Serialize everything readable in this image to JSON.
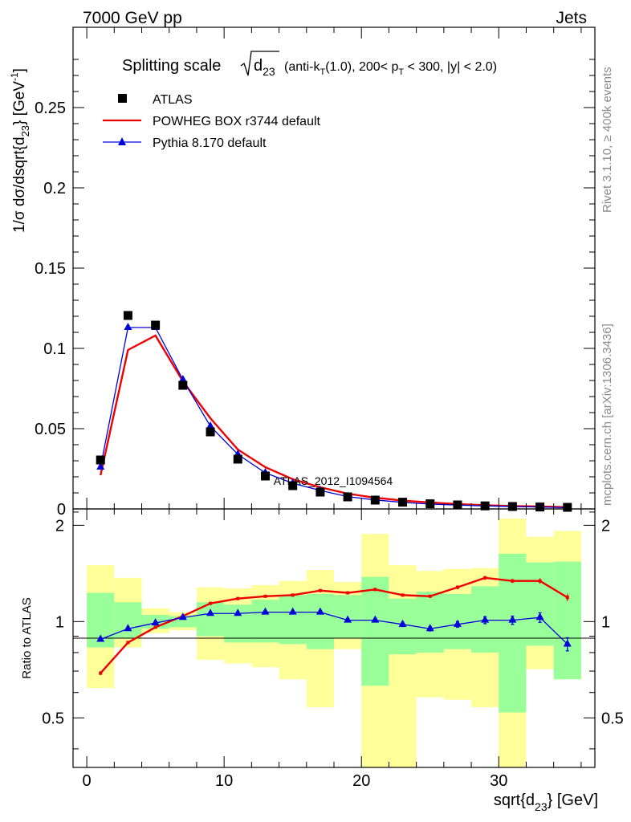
{
  "header": {
    "left": "7000 GeV pp",
    "right": "Jets"
  },
  "side_labels": {
    "rivet": "Rivet 3.1.10, ≥ 400k events",
    "mcplots": "mcplots.cern.ch [arXiv:1306.3436]"
  },
  "watermark": "ATLAS_2012_I1094564",
  "chart_data": [
    {
      "type": "scatter",
      "title": "Splitting scale √d23 (anti-kT(1.0), 200< pT < 300, |y| < 2.0)",
      "xlabel": "sqrt{d23} [GeV]",
      "ylabel": "1/σ dσ/dsqrt{d23} [GeV⁻¹]",
      "xlim": [
        -1,
        37
      ],
      "ylim": [
        0,
        0.3
      ],
      "yticks": [
        "0",
        "0.05",
        "0.1",
        "0.15",
        "0.2",
        "0.25"
      ],
      "legend_position": "top-left",
      "x": [
        1,
        3,
        5,
        7,
        9,
        11,
        13,
        15,
        17,
        19,
        21,
        23,
        25,
        27,
        29,
        31,
        33,
        35
      ],
      "series": [
        {
          "name": "ATLAS",
          "style": "marker",
          "color": "#000000",
          "values": [
            0.0305,
            0.1205,
            0.1145,
            0.077,
            0.048,
            0.031,
            0.0205,
            0.0145,
            0.0105,
            0.0075,
            0.0055,
            0.0042,
            0.0032,
            0.0025,
            0.0019,
            0.0015,
            0.0012,
            0.001
          ]
        },
        {
          "name": "POWHEG BOX r3744 default",
          "style": "line",
          "color": "#ee0000",
          "values": [
            0.021,
            0.099,
            0.108,
            0.0795,
            0.0565,
            0.037,
            0.026,
            0.0185,
            0.0135,
            0.0095,
            0.007,
            0.0052,
            0.004,
            0.003,
            0.0023,
            0.0018,
            0.0015,
            0.0011
          ]
        },
        {
          "name": "Pythia 8.170 default",
          "style": "line-triangle",
          "color": "#0000dd",
          "values": [
            0.026,
            0.113,
            0.113,
            0.0805,
            0.0515,
            0.034,
            0.0225,
            0.016,
            0.0115,
            0.0077,
            0.0056,
            0.0041,
            0.003,
            0.0024,
            0.0019,
            0.0015,
            0.0012,
            0.0008
          ]
        }
      ]
    },
    {
      "type": "line",
      "xlabel": "sqrt{d23} [GeV]",
      "ylabel": "Ratio to ATLAS",
      "xlim": [
        -1,
        37
      ],
      "ylim": [
        0.35,
        2.25
      ],
      "xticks": [
        "0",
        "10",
        "20",
        "30"
      ],
      "yticks": [
        "0.5",
        "1",
        "2"
      ],
      "reference_line": 1,
      "bins": [
        [
          0,
          2
        ],
        [
          2,
          4
        ],
        [
          4,
          6
        ],
        [
          6,
          8
        ],
        [
          8,
          10
        ],
        [
          10,
          12
        ],
        [
          12,
          14
        ],
        [
          14,
          16
        ],
        [
          16,
          18
        ],
        [
          18,
          20
        ],
        [
          20,
          22
        ],
        [
          22,
          24
        ],
        [
          24,
          26
        ],
        [
          26,
          28
        ],
        [
          28,
          30
        ],
        [
          30,
          32
        ],
        [
          32,
          34
        ],
        [
          34,
          36
        ]
      ],
      "yellow_band": [
        [
          0.62,
          1.5
        ],
        [
          0.83,
          1.37
        ],
        [
          0.92,
          1.1
        ],
        [
          0.94,
          1.07
        ],
        [
          0.76,
          1.28
        ],
        [
          0.74,
          1.27
        ],
        [
          0.72,
          1.3
        ],
        [
          0.66,
          1.34
        ],
        [
          0.54,
          1.45
        ],
        [
          0.82,
          1.33
        ],
        [
          0.35,
          1.88
        ],
        [
          0.35,
          1.5
        ],
        [
          0.58,
          1.44
        ],
        [
          0.57,
          1.46
        ],
        [
          0.54,
          1.47
        ],
        [
          0.35,
          2.1
        ],
        [
          0.71,
          1.84
        ],
        [
          0.66,
          1.92
        ]
      ],
      "green_band": [
        [
          0.83,
          1.23
        ],
        [
          0.89,
          1.15
        ],
        [
          0.95,
          1.05
        ],
        [
          0.96,
          1.04
        ],
        [
          0.9,
          1.15
        ],
        [
          0.86,
          1.13
        ],
        [
          0.86,
          1.17
        ],
        [
          0.85,
          1.21
        ],
        [
          0.82,
          1.22
        ],
        [
          0.89,
          1.21
        ],
        [
          0.63,
          1.38
        ],
        [
          0.79,
          1.18
        ],
        [
          0.8,
          1.24
        ],
        [
          0.82,
          1.22
        ],
        [
          0.8,
          1.29
        ],
        [
          0.52,
          1.63
        ],
        [
          0.84,
          1.53
        ],
        [
          0.66,
          1.54
        ]
      ],
      "series": [
        {
          "name": "POWHEG BOX r3744 default",
          "color": "#ee0000",
          "values": [
            0.69,
            0.86,
            0.96,
            1.04,
            1.14,
            1.18,
            1.2,
            1.21,
            1.25,
            1.23,
            1.26,
            1.21,
            1.2,
            1.28,
            1.37,
            1.34,
            1.34,
            1.19
          ],
          "errors": [
            0.01,
            0.01,
            0.005,
            0.005,
            0.005,
            0.008,
            0.008,
            0.01,
            0.01,
            0.01,
            0.012,
            0.012,
            0.012,
            0.018,
            0.02,
            0.02,
            0.025,
            0.03
          ]
        },
        {
          "name": "Pythia 8.170 default",
          "color": "#0000dd",
          "values": [
            0.88,
            0.95,
            0.99,
            1.03,
            1.06,
            1.06,
            1.07,
            1.07,
            1.07,
            1.01,
            1.01,
            0.98,
            0.95,
            0.98,
            1.01,
            1.01,
            1.03,
            0.85
          ],
          "errors": [
            0.01,
            0.01,
            0.005,
            0.005,
            0.005,
            0.008,
            0.008,
            0.01,
            0.01,
            0.012,
            0.012,
            0.015,
            0.015,
            0.02,
            0.025,
            0.03,
            0.035,
            0.04
          ]
        }
      ]
    }
  ]
}
